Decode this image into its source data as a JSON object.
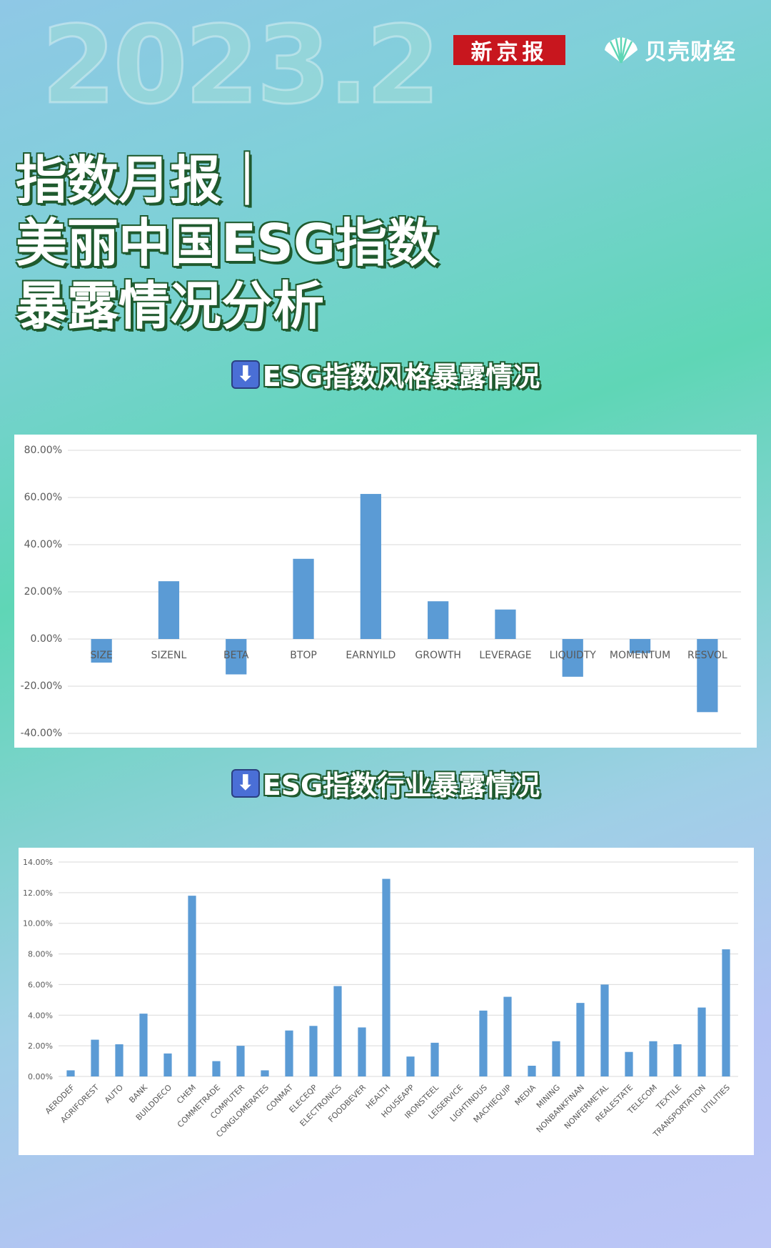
{
  "header": {
    "year": "2023.2",
    "logo_xjb": "新京报",
    "logo_bk": "贝壳财经"
  },
  "title": {
    "line1": "指数月报｜",
    "line2": "美丽中国ESG指数",
    "line3": "暴露情况分析"
  },
  "sections": {
    "style_head": "ESG指数风格暴露情况",
    "industry_head": "ESG指数行业暴露情况",
    "arrow_icon": "⬇"
  },
  "colors": {
    "bar": "#5b9bd5",
    "grid": "#d9d9d9",
    "axis_text": "#595959"
  },
  "chart_data": [
    {
      "type": "bar",
      "title": "",
      "xlabel": "",
      "ylabel": "",
      "categories": [
        "SIZE",
        "SIZENL",
        "BETA",
        "BTOP",
        "EARNYILD",
        "GROWTH",
        "LEVERAGE",
        "LIQUIDTY",
        "MOMENTUM",
        "RESVOL"
      ],
      "values": [
        -10.0,
        24.5,
        -15.0,
        34.0,
        61.5,
        16.0,
        12.5,
        -16.0,
        -6.0,
        -31.0
      ],
      "ylim": [
        -40,
        80
      ],
      "yticks": [
        -40,
        -20,
        0,
        20,
        40,
        60,
        80
      ],
      "y_tick_format": "percent_2dp",
      "grid": true,
      "legend": "none"
    },
    {
      "type": "bar",
      "title": "",
      "xlabel": "",
      "ylabel": "",
      "categories": [
        "AERODEF",
        "AGRIFOREST",
        "AUTO",
        "BANK",
        "BUILDDECO",
        "CHEM",
        "COMMETRADE",
        "COMPUTER",
        "CONGLOMERATES",
        "CONMAT",
        "ELECEQP",
        "ELECTRONICS",
        "FOODBEVER",
        "HEALTH",
        "HOUSEAPP",
        "IRONSTEEL",
        "LEISERVICE",
        "LIGHTINDUS",
        "MACHIEQUIP",
        "MEDIA",
        "MINING",
        "NONBANKFINAN",
        "NONFERMETAL",
        "REALESTATE",
        "TELECOM",
        "TEXTILE",
        "TRANSPORTATION",
        "UTILITIES"
      ],
      "values": [
        0.4,
        2.4,
        2.1,
        4.1,
        1.5,
        11.8,
        1.0,
        2.0,
        0.4,
        3.0,
        3.3,
        5.9,
        3.2,
        12.9,
        1.3,
        2.2,
        0.0,
        4.3,
        5.2,
        0.7,
        2.3,
        4.8,
        6.0,
        1.6,
        2.3,
        2.1,
        4.5,
        8.3
      ],
      "ylim": [
        0,
        14
      ],
      "yticks": [
        0,
        2,
        4,
        6,
        8,
        10,
        12,
        14
      ],
      "y_tick_format": "percent_2dp",
      "grid": true,
      "legend": "none"
    }
  ]
}
